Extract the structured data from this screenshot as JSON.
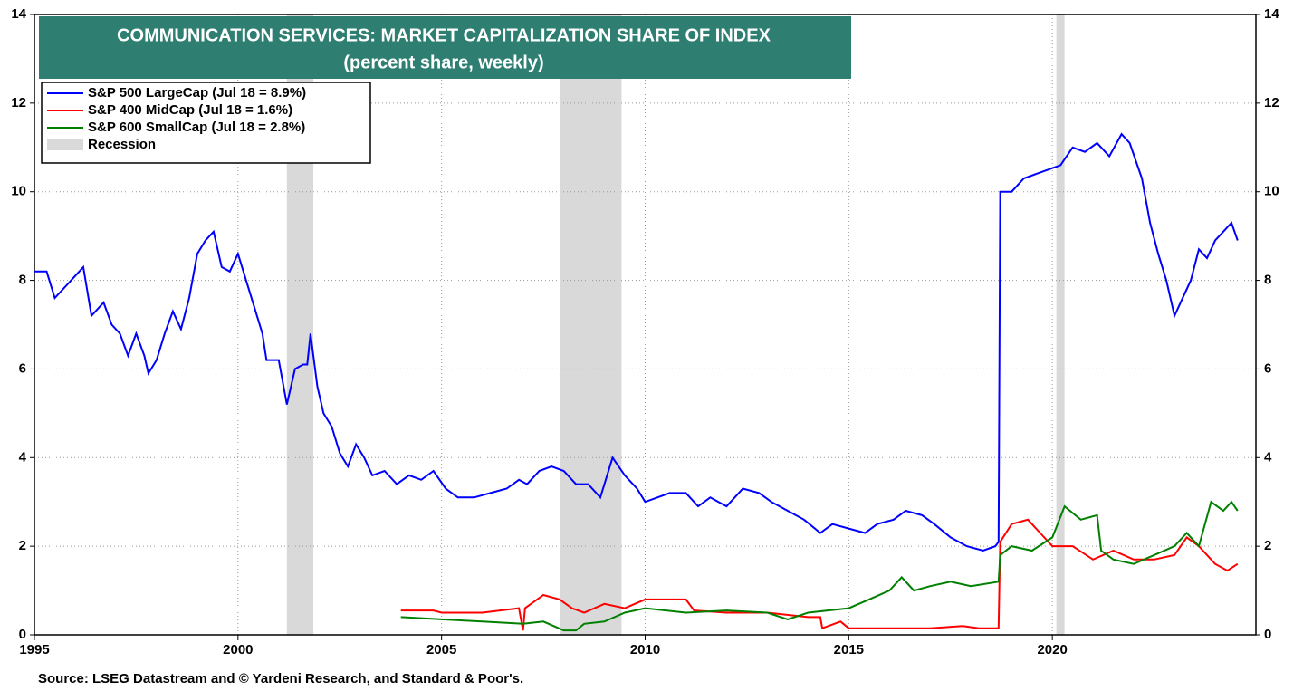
{
  "chart_data": {
    "type": "line",
    "title": "COMMUNICATION SERVICES: MARKET CAPITALIZATION SHARE OF INDEX",
    "subtitle": "(percent share, weekly)",
    "source": "Source: LSEG Datastream and © Yardeni Research, and Standard & Poor's.",
    "xlim": [
      1995,
      2025
    ],
    "ylim": [
      0,
      14
    ],
    "xticks": [
      1995,
      2000,
      2005,
      2010,
      2015,
      2020
    ],
    "yticks": [
      0,
      2,
      4,
      6,
      8,
      10,
      12,
      14
    ],
    "grid": true,
    "recession_label": "Recession",
    "recession_color": "#d9d9d9",
    "recessions": [
      [
        2001.2,
        2001.85
      ],
      [
        2007.92,
        2009.42
      ],
      [
        2020.1,
        2020.3
      ]
    ],
    "series": [
      {
        "name": "S&P 500 LargeCap (Jul 18 = 8.9%)",
        "color": "#0000ff",
        "x": [
          1995.0,
          1995.3,
          1995.5,
          1995.8,
          1996.0,
          1996.2,
          1996.4,
          1996.7,
          1996.9,
          1997.1,
          1997.3,
          1997.5,
          1997.7,
          1997.8,
          1998.0,
          1998.2,
          1998.4,
          1998.6,
          1998.8,
          1999.0,
          1999.2,
          1999.4,
          1999.6,
          1999.8,
          2000.0,
          2000.2,
          2000.4,
          2000.6,
          2000.7,
          2001.0,
          2001.2,
          2001.4,
          2001.6,
          2001.7,
          2001.78,
          2001.95,
          2002.1,
          2002.3,
          2002.5,
          2002.7,
          2002.9,
          2003.1,
          2003.3,
          2003.6,
          2003.9,
          2004.2,
          2004.5,
          2004.8,
          2005.1,
          2005.4,
          2005.8,
          2006.2,
          2006.6,
          2006.9,
          2007.1,
          2007.4,
          2007.7,
          2008.0,
          2008.3,
          2008.6,
          2008.9,
          2009.2,
          2009.5,
          2009.8,
          2010.0,
          2010.3,
          2010.6,
          2011.0,
          2011.3,
          2011.6,
          2012.0,
          2012.4,
          2012.8,
          2013.1,
          2013.5,
          2013.9,
          2014.3,
          2014.6,
          2015.0,
          2015.4,
          2015.7,
          2016.1,
          2016.4,
          2016.8,
          2017.1,
          2017.5,
          2017.9,
          2018.3,
          2018.6,
          2018.68,
          2018.72,
          2019.0,
          2019.3,
          2019.6,
          2019.9,
          2020.2,
          2020.5,
          2020.8,
          2021.1,
          2021.4,
          2021.7,
          2021.9,
          2022.2,
          2022.4,
          2022.6,
          2022.8,
          2023.0,
          2023.2,
          2023.4,
          2023.6,
          2023.8,
          2024.0,
          2024.2,
          2024.4,
          2024.55
        ],
        "values": [
          8.2,
          8.2,
          7.6,
          7.9,
          8.1,
          8.3,
          7.2,
          7.5,
          7.0,
          6.8,
          6.3,
          6.8,
          6.3,
          5.9,
          6.2,
          6.8,
          7.3,
          6.9,
          7.6,
          8.6,
          8.9,
          9.1,
          8.3,
          8.2,
          8.6,
          8.0,
          7.4,
          6.8,
          6.2,
          6.2,
          5.2,
          6.0,
          6.1,
          6.1,
          6.8,
          5.6,
          5.0,
          4.7,
          4.1,
          3.8,
          4.3,
          4.0,
          3.6,
          3.7,
          3.4,
          3.6,
          3.5,
          3.7,
          3.3,
          3.1,
          3.1,
          3.2,
          3.3,
          3.5,
          3.4,
          3.7,
          3.8,
          3.7,
          3.4,
          3.4,
          3.1,
          4.0,
          3.6,
          3.3,
          3.0,
          3.1,
          3.2,
          3.2,
          2.9,
          3.1,
          2.9,
          3.3,
          3.2,
          3.0,
          2.8,
          2.6,
          2.3,
          2.5,
          2.4,
          2.3,
          2.5,
          2.6,
          2.8,
          2.7,
          2.5,
          2.2,
          2.0,
          1.9,
          2.0,
          2.1,
          10.0,
          10.0,
          10.3,
          10.4,
          10.5,
          10.6,
          11.0,
          10.9,
          11.1,
          10.8,
          11.3,
          11.1,
          10.3,
          9.3,
          8.6,
          8.0,
          7.2,
          7.6,
          8.0,
          8.7,
          8.5,
          8.9,
          9.1,
          9.3,
          8.9
        ]
      },
      {
        "name": "S&P 400 MidCap (Jul 18 = 1.6%)",
        "color": "#ff0000",
        "x": [
          2004.0,
          2004.8,
          2005.0,
          2006.0,
          2006.9,
          2007.0,
          2007.05,
          2007.5,
          2007.9,
          2008.2,
          2008.5,
          2009.0,
          2009.5,
          2010.0,
          2011.0,
          2011.2,
          2012.0,
          2013.0,
          2014.0,
          2014.3,
          2014.35,
          2014.8,
          2015.0,
          2016.0,
          2017.0,
          2017.8,
          2018.2,
          2018.68,
          2018.72,
          2019.0,
          2019.4,
          2019.7,
          2020.0,
          2020.5,
          2021.0,
          2021.5,
          2022.0,
          2022.5,
          2023.0,
          2023.3,
          2023.6,
          2024.0,
          2024.3,
          2024.55
        ],
        "values": [
          0.55,
          0.55,
          0.5,
          0.5,
          0.6,
          0.1,
          0.6,
          0.9,
          0.8,
          0.6,
          0.5,
          0.7,
          0.6,
          0.8,
          0.8,
          0.55,
          0.5,
          0.5,
          0.4,
          0.4,
          0.15,
          0.3,
          0.15,
          0.15,
          0.15,
          0.2,
          0.15,
          0.15,
          2.1,
          2.5,
          2.6,
          2.3,
          2.0,
          2.0,
          1.7,
          1.9,
          1.7,
          1.7,
          1.8,
          2.2,
          2.0,
          1.6,
          1.45,
          1.6
        ]
      },
      {
        "name": "S&P 600 SmallCap (Jul 18 = 2.8%)",
        "color": "#008000",
        "x": [
          2004.0,
          2005.0,
          2006.0,
          2007.0,
          2007.5,
          2008.0,
          2008.3,
          2008.5,
          2009.0,
          2009.5,
          2010.0,
          2011.0,
          2012.0,
          2013.0,
          2013.5,
          2014.0,
          2015.0,
          2015.5,
          2016.0,
          2016.3,
          2016.6,
          2017.0,
          2017.5,
          2018.0,
          2018.68,
          2018.72,
          2019.0,
          2019.5,
          2020.0,
          2020.3,
          2020.7,
          2021.1,
          2021.2,
          2021.5,
          2022.0,
          2022.5,
          2023.0,
          2023.3,
          2023.6,
          2023.9,
          2024.2,
          2024.4,
          2024.55
        ],
        "values": [
          0.4,
          0.35,
          0.3,
          0.25,
          0.3,
          0.1,
          0.1,
          0.25,
          0.3,
          0.5,
          0.6,
          0.5,
          0.55,
          0.5,
          0.35,
          0.5,
          0.6,
          0.8,
          1.0,
          1.3,
          1.0,
          1.1,
          1.2,
          1.1,
          1.2,
          1.8,
          2.0,
          1.9,
          2.2,
          2.9,
          2.6,
          2.7,
          1.9,
          1.7,
          1.6,
          1.8,
          2.0,
          2.3,
          2.0,
          3.0,
          2.8,
          3.0,
          2.8
        ]
      }
    ]
  }
}
